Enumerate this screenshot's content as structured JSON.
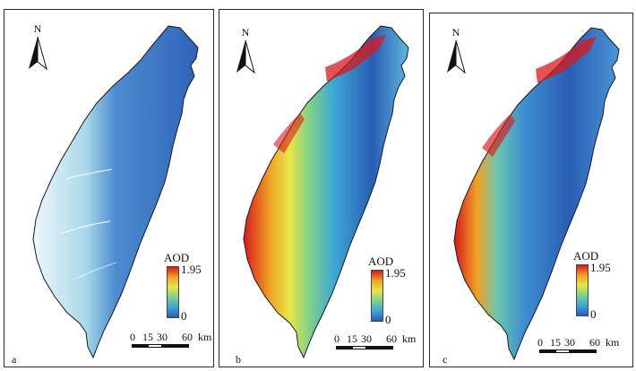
{
  "panels": [
    {
      "label": "a",
      "variant": "a"
    },
    {
      "label": "b",
      "variant": "b"
    },
    {
      "label": "c",
      "variant": "c"
    }
  ],
  "north_label": "N",
  "legend": {
    "title": "AOD",
    "max_label": "1.95",
    "min_label": "0",
    "colors": [
      "#d7191c",
      "#f0a224",
      "#e8e64a",
      "#7fd08a",
      "#3ea6d8",
      "#2a5db3"
    ]
  },
  "scale": {
    "ticks": [
      "0",
      "15",
      "30",
      "60"
    ],
    "unit": "km"
  },
  "colors": {
    "coast_outline": "#1a1a1a",
    "low_aod": "#2f63b8",
    "mid_aod": "#69c2d8",
    "high_aod": "#d9281f"
  }
}
